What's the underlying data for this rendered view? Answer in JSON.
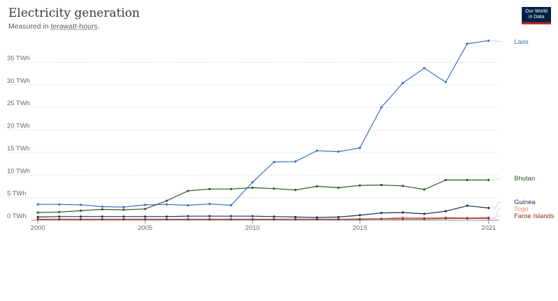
{
  "header": {
    "title": "Electricity generation",
    "subtitle_prefix": "Measured in ",
    "subtitle_unit": "terawatt-hours",
    "subtitle_suffix": ".",
    "logo_line1": "Our World",
    "logo_line2": "in Data"
  },
  "colors": {
    "grid": "#dddddd",
    "logo_bg": "#002147",
    "logo_accent": "#ce261e"
  },
  "chart_data": {
    "type": "line",
    "title": "Electricity generation",
    "subtitle": "Measured in terawatt-hours.",
    "xlabel": "",
    "ylabel": "",
    "xlim": [
      1999.7,
      2021.5
    ],
    "ylim": [
      0,
      40
    ],
    "y_ticks": [
      0,
      5,
      10,
      15,
      20,
      25,
      30,
      35
    ],
    "y_tick_labels": [
      "0 TWh",
      "5 TWh",
      "10 TWh",
      "15 TWh",
      "20 TWh",
      "25 TWh",
      "30 TWh",
      "35 TWh"
    ],
    "x_ticks": [
      2000,
      2005,
      2010,
      2015,
      2021
    ],
    "x_tick_labels": [
      "2000",
      "2005",
      "2010",
      "2015",
      "2021"
    ],
    "grid": "horizontal dotted",
    "legend": "right, labels at line ends",
    "series": [
      {
        "name": "Laos",
        "color": "#3a6fbf",
        "x": [
          2000,
          2001,
          2002,
          2003,
          2004,
          2005,
          2006,
          2007,
          2008,
          2009,
          2010,
          2011,
          2012,
          2013,
          2014,
          2015,
          2016,
          2017,
          2018,
          2019,
          2020,
          2021
        ],
        "values": [
          3.5,
          3.5,
          3.4,
          3.0,
          2.9,
          3.4,
          3.5,
          3.3,
          3.6,
          3.3,
          8.4,
          12.9,
          13.0,
          15.4,
          15.2,
          16.0,
          25.0,
          30.4,
          33.7,
          30.6,
          39.1,
          39.8
        ]
      },
      {
        "name": "Bhutan",
        "color": "#2d5a27",
        "x": [
          2000,
          2001,
          2002,
          2003,
          2004,
          2005,
          2006,
          2007,
          2008,
          2009,
          2010,
          2011,
          2012,
          2013,
          2014,
          2015,
          2016,
          2017,
          2018,
          2019,
          2020,
          2021
        ],
        "values": [
          1.7,
          1.8,
          2.1,
          2.4,
          2.3,
          2.5,
          4.3,
          6.5,
          6.9,
          6.9,
          7.2,
          7.0,
          6.7,
          7.5,
          7.2,
          7.7,
          7.8,
          7.6,
          6.8,
          8.9,
          8.9,
          8.9
        ]
      },
      {
        "name": "Guinea",
        "color": "#1f2f5e",
        "x": [
          2000,
          2001,
          2002,
          2003,
          2004,
          2005,
          2006,
          2007,
          2008,
          2009,
          2010,
          2011,
          2012,
          2013,
          2014,
          2015,
          2016,
          2017,
          2018,
          2019,
          2020,
          2021
        ],
        "values": [
          0.7,
          0.8,
          0.8,
          0.8,
          0.8,
          0.8,
          0.8,
          0.9,
          0.9,
          0.9,
          0.9,
          0.8,
          0.7,
          0.6,
          0.7,
          1.1,
          1.6,
          1.7,
          1.4,
          2.0,
          3.2,
          2.7
        ]
      },
      {
        "name": "Togo",
        "color": "#e0897a",
        "x": [
          2000,
          2001,
          2002,
          2003,
          2004,
          2005,
          2006,
          2007,
          2008,
          2009,
          2010,
          2011,
          2012,
          2013,
          2014,
          2015,
          2016,
          2017,
          2018,
          2019,
          2020,
          2021
        ],
        "values": [
          0.2,
          0.2,
          0.2,
          0.2,
          0.2,
          0.2,
          0.2,
          0.2,
          0.2,
          0.2,
          0.2,
          0.2,
          0.2,
          0.2,
          0.2,
          0.3,
          0.3,
          0.6,
          0.5,
          0.6,
          0.5,
          0.6
        ]
      },
      {
        "name": "Faroe Islands",
        "color": "#8b2a24",
        "x": [
          2000,
          2001,
          2002,
          2003,
          2004,
          2005,
          2006,
          2007,
          2008,
          2009,
          2010,
          2011,
          2012,
          2013,
          2014,
          2015,
          2016,
          2017,
          2018,
          2019,
          2020,
          2021
        ],
        "values": [
          0.2,
          0.2,
          0.2,
          0.2,
          0.2,
          0.2,
          0.2,
          0.2,
          0.2,
          0.2,
          0.2,
          0.2,
          0.2,
          0.2,
          0.2,
          0.2,
          0.3,
          0.3,
          0.3,
          0.4,
          0.4,
          0.4
        ]
      }
    ]
  }
}
